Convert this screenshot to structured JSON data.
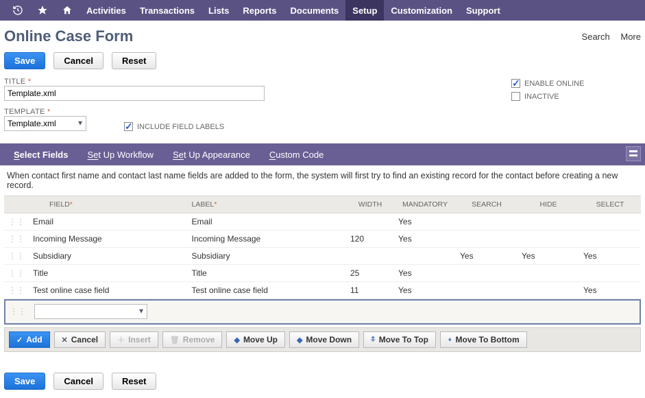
{
  "nav": {
    "items": [
      "Activities",
      "Transactions",
      "Lists",
      "Reports",
      "Documents",
      "Setup",
      "Customization",
      "Support"
    ],
    "active_index": 5
  },
  "page": {
    "title": "Online Case Form",
    "search": "Search",
    "more": "More"
  },
  "buttons": {
    "save": "Save",
    "cancel": "Cancel",
    "reset": "Reset"
  },
  "form": {
    "title_label": "TITLE",
    "title_value": "Template.xml",
    "template_label": "TEMPLATE",
    "template_value": "Template.xml",
    "include_labels_label": "INCLUDE FIELD LABELS",
    "include_labels_checked": true,
    "enable_online_label": "ENABLE ONLINE",
    "enable_online_checked": true,
    "inactive_label": "INACTIVE",
    "inactive_checked": false
  },
  "tabs": {
    "items": [
      {
        "prefix": "S",
        "rest": "elect Fields"
      },
      {
        "prefix": "Se",
        "rest": "t Up Workflow"
      },
      {
        "prefix": "Se",
        "rest": "t Up Appearance"
      },
      {
        "prefix": "C",
        "rest": "ustom Code"
      }
    ],
    "active_index": 0
  },
  "hint": "When contact first name and contact last name fields are added to the form, the system will first try to find an existing record for the contact before creating a new record.",
  "grid": {
    "headers": {
      "field": "FIELD",
      "label": "LABEL",
      "width": "WIDTH",
      "mandatory": "MANDATORY",
      "search": "SEARCH",
      "hide": "HIDE",
      "select": "SELECT"
    },
    "rows": [
      {
        "field": "Email",
        "label": "Email",
        "width": "",
        "mandatory": "Yes",
        "search": "",
        "hide": "",
        "select": ""
      },
      {
        "field": "Incoming Message",
        "label": "Incoming Message",
        "width": "120",
        "mandatory": "Yes",
        "search": "",
        "hide": "",
        "select": ""
      },
      {
        "field": "Subsidiary",
        "label": "Subsidiary",
        "width": "",
        "mandatory": "",
        "search": "Yes",
        "hide": "Yes",
        "select": "Yes"
      },
      {
        "field": "Title",
        "label": "Title",
        "width": "25",
        "mandatory": "Yes",
        "search": "",
        "hide": "",
        "select": ""
      },
      {
        "field": "Test online case field",
        "label": "Test online case field",
        "width": "11",
        "mandatory": "Yes",
        "search": "",
        "hide": "",
        "select": "Yes"
      }
    ]
  },
  "grid_actions": {
    "add": "Add",
    "cancel": "Cancel",
    "insert": "Insert",
    "remove": "Remove",
    "move_up": "Move Up",
    "move_down": "Move Down",
    "move_top": "Move To Top",
    "move_bottom": "Move To Bottom"
  }
}
